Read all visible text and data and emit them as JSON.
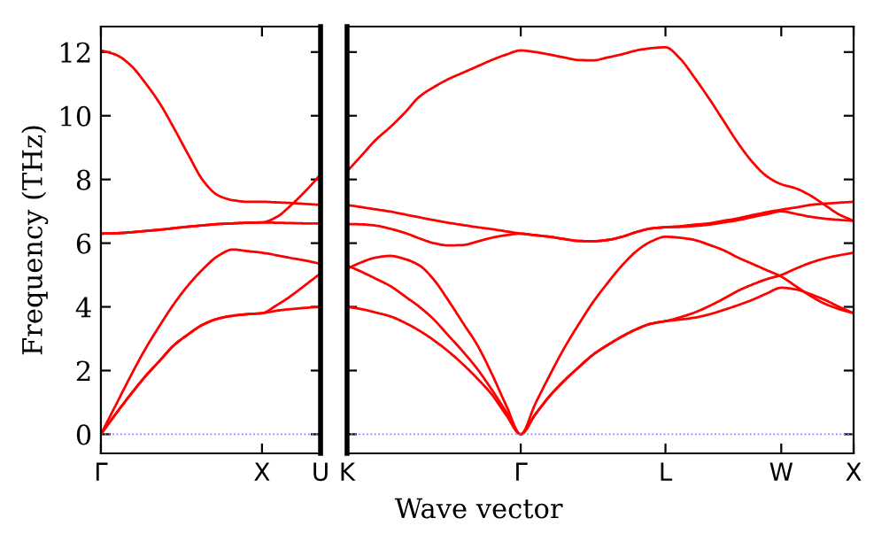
{
  "chart_data": [
    {
      "type": "line",
      "ylabel": "Frequency (THz)",
      "ylim": [
        -0.6,
        12.8
      ],
      "yticks": [
        0,
        2,
        4,
        6,
        8,
        10,
        12
      ],
      "categories": [
        "Γ",
        null,
        null,
        null,
        null,
        null,
        null,
        null,
        null,
        null,
        null,
        "X",
        null,
        null,
        null,
        "U"
      ],
      "grid": false,
      "legend": false,
      "marker": "none",
      "line_style": "solid",
      "ref_lines": [
        {
          "axis": "y",
          "value": 0,
          "label": null,
          "color": "#8080ff",
          "line_style": "dotted"
        }
      ],
      "series": [
        {
          "color": "#ff0000",
          "values": [
            12.05,
            11.92,
            11.6,
            11.05,
            10.4,
            9.6,
            8.75,
            7.95,
            7.5,
            7.35,
            7.3,
            7.3,
            7.28,
            7.26,
            7.23,
            7.2
          ]
        },
        {
          "color": "#ff0000",
          "values": [
            6.3,
            6.31,
            6.34,
            6.38,
            6.42,
            6.47,
            6.52,
            6.56,
            6.6,
            6.62,
            6.64,
            6.65,
            6.64,
            6.63,
            6.62,
            6.62
          ]
        },
        {
          "color": "#ff0000",
          "values": [
            6.3,
            6.31,
            6.34,
            6.38,
            6.42,
            6.47,
            6.52,
            6.56,
            6.6,
            6.62,
            6.64,
            6.65,
            6.82,
            7.2,
            7.65,
            8.15
          ]
        },
        {
          "color": "#ff0000",
          "values": [
            0,
            0.9,
            1.8,
            2.65,
            3.4,
            4.1,
            4.7,
            5.2,
            5.6,
            5.8,
            5.75,
            5.7,
            5.62,
            5.53,
            5.45,
            5.35
          ]
        },
        {
          "color": "#ff0000",
          "values": [
            0,
            0.63,
            1.23,
            1.8,
            2.3,
            2.8,
            3.15,
            3.45,
            3.63,
            3.72,
            3.77,
            3.8,
            3.88,
            3.93,
            3.97,
            4.0
          ]
        },
        {
          "color": "#ff0000",
          "values": [
            0,
            0.63,
            1.23,
            1.8,
            2.3,
            2.8,
            3.15,
            3.45,
            3.63,
            3.72,
            3.77,
            3.8,
            4.05,
            4.35,
            4.7,
            5.05
          ]
        }
      ]
    },
    {
      "type": "line",
      "xlabel": "Wave vector",
      "ylim": [
        -0.6,
        12.8
      ],
      "yticks": [
        {
          "value": 0,
          "label": null
        },
        {
          "value": 2,
          "label": null
        },
        {
          "value": 4,
          "label": null
        },
        {
          "value": 6,
          "label": null
        },
        {
          "value": 8,
          "label": null
        },
        {
          "value": 10,
          "label": null
        },
        {
          "value": 12,
          "label": null
        }
      ],
      "categories": [
        "K",
        null,
        null,
        null,
        null,
        null,
        null,
        null,
        null,
        null,
        null,
        null,
        "Γ",
        null,
        null,
        null,
        null,
        null,
        null,
        null,
        null,
        null,
        "L",
        null,
        null,
        null,
        null,
        null,
        null,
        null,
        "W",
        null,
        null,
        null,
        null,
        "X"
      ],
      "tick_labels": "x",
      "grid": false,
      "legend": false,
      "marker": "none",
      "line_style": "solid",
      "ref_lines": [
        {
          "axis": "y",
          "value": 0,
          "label": null,
          "color": "#8080ff",
          "line_style": "dotted"
        }
      ],
      "series": [
        {
          "color": "#ff0000",
          "values": [
            8.25,
            8.75,
            9.25,
            9.65,
            10.1,
            10.6,
            10.9,
            11.15,
            11.35,
            11.55,
            11.75,
            11.92,
            12.05,
            12.0,
            11.92,
            11.83,
            11.75,
            11.74,
            11.83,
            11.93,
            12.05,
            12.12,
            12.15,
            11.8,
            11.2,
            10.55,
            9.85,
            9.15,
            8.55,
            8.1,
            7.85,
            7.72,
            7.5,
            7.2,
            6.9,
            6.7
          ]
        },
        {
          "color": "#ff0000",
          "values": [
            7.2,
            7.13,
            7.06,
            6.99,
            6.9,
            6.81,
            6.72,
            6.64,
            6.57,
            6.5,
            6.44,
            6.37,
            6.3,
            6.25,
            6.2,
            6.13,
            6.07,
            6.06,
            6.1,
            6.2,
            6.35,
            6.46,
            6.5,
            6.53,
            6.58,
            6.62,
            6.7,
            6.78,
            6.88,
            6.97,
            7.05,
            7.12,
            7.2,
            7.24,
            7.27,
            7.3
          ]
        },
        {
          "color": "#ff0000",
          "values": [
            6.6,
            6.59,
            6.55,
            6.45,
            6.32,
            6.15,
            6.0,
            5.93,
            5.94,
            6.05,
            6.17,
            6.25,
            6.3,
            6.25,
            6.2,
            6.13,
            6.07,
            6.06,
            6.1,
            6.2,
            6.35,
            6.46,
            6.5,
            6.51,
            6.54,
            6.58,
            6.65,
            6.72,
            6.82,
            6.91,
            7.0,
            6.92,
            6.83,
            6.77,
            6.73,
            6.7
          ]
        },
        {
          "color": "#ff0000",
          "values": [
            5.2,
            5.4,
            5.55,
            5.6,
            5.5,
            5.3,
            4.85,
            4.2,
            3.5,
            2.8,
            1.9,
            0.9,
            0,
            0.95,
            1.85,
            2.7,
            3.45,
            4.15,
            4.75,
            5.3,
            5.75,
            6.05,
            6.2,
            6.17,
            6.1,
            5.95,
            5.78,
            5.55,
            5.35,
            5.15,
            4.95,
            4.65,
            4.35,
            4.1,
            3.93,
            3.8
          ]
        },
        {
          "color": "#ff0000",
          "values": [
            5.3,
            5.1,
            4.88,
            4.65,
            4.33,
            4.0,
            3.6,
            3.1,
            2.6,
            2.05,
            1.4,
            0.7,
            0,
            0.62,
            1.2,
            1.68,
            2.1,
            2.5,
            2.8,
            3.07,
            3.3,
            3.47,
            3.55,
            3.67,
            3.82,
            4.02,
            4.25,
            4.5,
            4.7,
            4.87,
            5.0,
            5.2,
            5.38,
            5.52,
            5.62,
            5.7
          ]
        },
        {
          "color": "#ff0000",
          "values": [
            4.0,
            3.93,
            3.82,
            3.7,
            3.5,
            3.25,
            2.95,
            2.6,
            2.2,
            1.75,
            1.25,
            0.6,
            0,
            0.62,
            1.2,
            1.68,
            2.1,
            2.5,
            2.8,
            3.07,
            3.3,
            3.47,
            3.55,
            3.6,
            3.66,
            3.76,
            3.9,
            4.05,
            4.22,
            4.42,
            4.6,
            4.55,
            4.4,
            4.22,
            4.0,
            3.8
          ]
        }
      ]
    }
  ]
}
